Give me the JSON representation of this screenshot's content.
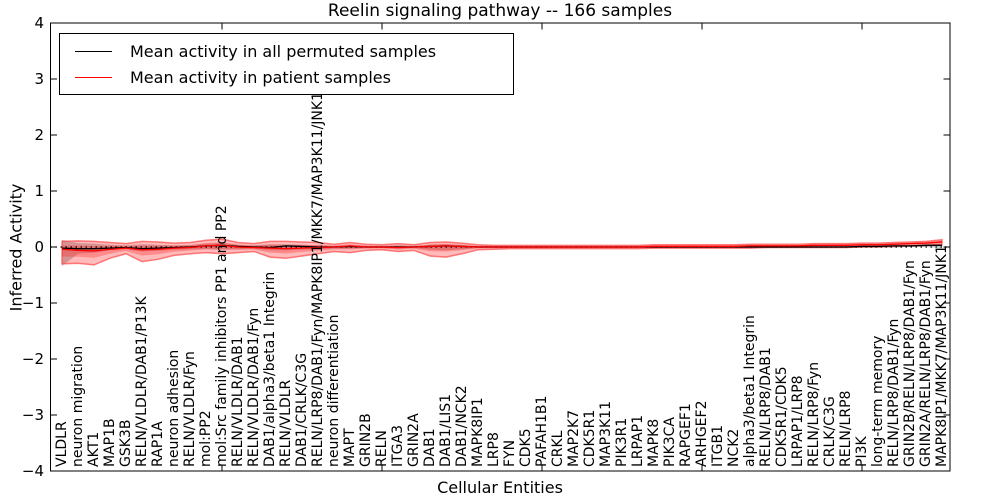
{
  "title": "Reelin signaling pathway -- 166 samples",
  "legend": {
    "items": [
      {
        "label": "Mean activity in all permuted samples",
        "color": "#000000"
      },
      {
        "label": "Mean activity in patient samples",
        "color": "#ff0000"
      }
    ]
  },
  "axes": {
    "ylabel": "Inferred Activity",
    "xlabel": "Cellular Entities",
    "ytick_labels": [
      "4",
      "3",
      "2",
      "1",
      "0",
      "−1",
      "−2",
      "−3",
      "−4"
    ]
  },
  "colors": {
    "permuted_line": "#000000",
    "patient_line": "#ff0000",
    "permuted_band": "rgba(128,128,128,0.45)",
    "patient_band_fill": "rgba(255,30,30,0.30)",
    "patient_band_edge": "rgba(255,60,60,0.65)",
    "frame": "#000000"
  },
  "chart_data": {
    "type": "line",
    "title": "Reelin signaling pathway -- 166 samples",
    "xlabel": "Cellular Entities",
    "ylabel": "Inferred Activity",
    "ylim": [
      -4,
      4
    ],
    "yticks": [
      4,
      3,
      2,
      1,
      0,
      -1,
      -2,
      -3,
      -4
    ],
    "xtick_indices": [
      10,
      20,
      30,
      40,
      50
    ],
    "grid": false,
    "legend_position": "upper left",
    "zero_line_style": "dotted",
    "categories": [
      "VLDLR",
      "neuron migration",
      "AKT1",
      "MAP1B",
      "GSK3B",
      "RELN/VLDLR/DAB1/P13K",
      "RAP1A",
      "neuron adhesion",
      "RELN/VLDLR/Fyn",
      "mol:PP2",
      "mol:Src family inhibitors PP1 and PP2",
      "RELN/VLDLR/DAB1",
      "RELN/VLDLR/DAB1/Fyn",
      "DAB1/alpha3/beta1 Integrin",
      "RELN/VLDLR",
      "DAB1/CRLK/C3G",
      "RELN/LRP8/DAB1/Fyn/MAPK8IP1/MKK7/MAP3K11/JNK1",
      "neuron differentiation",
      "MAPT",
      "GRIN2B",
      "RELN",
      "ITGA3",
      "GRIN2A",
      "DAB1",
      "DAB1/LIS1",
      "DAB1/NCK2",
      "MAPK8IP1",
      "LRP8",
      "FYN",
      "CDK5",
      "PAFAH1B1",
      "CRKL",
      "MAP2K7",
      "CDK5R1",
      "MAP3K11",
      "PIK3R1",
      "LRPAP1",
      "MAPK8",
      "PIK3CA",
      "RAPGEF1",
      "ARHGEF2",
      "ITGB1",
      "NCK2",
      "alpha3/beta1 Integrin",
      "RELN/LRP8/DAB1",
      "CDK5R1/CDK5",
      "LRPAP1/LRP8",
      "RELN/LRP8/Fyn",
      "CRLK/C3G",
      "RELN/LRP8",
      "PI3K",
      "long-term memory",
      "RELN/LRP8/DAB1/Fyn",
      "GRIN2B/RELN/LRP8/DAB1/Fyn",
      "GRIN2A/RELN/LRP8/DAB1/Fyn",
      "MAPK8IP1/MKK7/MAP3K11/JNK1"
    ],
    "series": [
      {
        "name": "Mean activity in all permuted samples",
        "color": "#000000",
        "values": [
          -0.02,
          -0.03,
          -0.03,
          -0.02,
          -0.01,
          -0.03,
          -0.02,
          -0.01,
          0,
          0.02,
          0.03,
          0.01,
          0,
          -0.01,
          0.02,
          0.01,
          0,
          0,
          0.01,
          0,
          0,
          0,
          0,
          0.01,
          0.02,
          0.01,
          0,
          0,
          0,
          0,
          0,
          0,
          0,
          0,
          0,
          0,
          0,
          0,
          0,
          0,
          0,
          0,
          0,
          0,
          0,
          0,
          0,
          0,
          0,
          0,
          0.01,
          0.01,
          0.02,
          0.02,
          0.03,
          0.03
        ],
        "band_upper": [
          0.13,
          0.07,
          0.06,
          0.04,
          0.03,
          0.05,
          0.04,
          0.03,
          0.03,
          0.06,
          0.07,
          0.04,
          0.03,
          0.05,
          0.05,
          0.04,
          0.03,
          0.02,
          0.03,
          0.02,
          0.02,
          0.03,
          0.02,
          0.04,
          0.05,
          0.03,
          0.02,
          0.02,
          0.02,
          0.02,
          0.02,
          0.02,
          0.02,
          0.02,
          0.02,
          0.02,
          0.02,
          0.02,
          0.02,
          0.02,
          0.02,
          0.02,
          0.02,
          0.02,
          0.02,
          0.02,
          0.02,
          0.02,
          0.02,
          0.02,
          0.03,
          0.03,
          0.04,
          0.04,
          0.05,
          0.06
        ],
        "band_lower": [
          -0.34,
          -0.12,
          -0.1,
          -0.06,
          -0.04,
          -0.08,
          -0.07,
          -0.05,
          -0.04,
          -0.04,
          -0.05,
          -0.04,
          -0.03,
          -0.06,
          -0.06,
          -0.05,
          -0.04,
          -0.03,
          -0.03,
          -0.02,
          -0.02,
          -0.03,
          -0.02,
          -0.05,
          -0.06,
          -0.04,
          -0.02,
          -0.02,
          -0.02,
          -0.02,
          -0.02,
          -0.02,
          -0.02,
          -0.02,
          -0.02,
          -0.02,
          -0.02,
          -0.02,
          -0.02,
          -0.02,
          -0.02,
          -0.02,
          -0.02,
          -0.02,
          -0.02,
          -0.02,
          -0.02,
          -0.02,
          -0.02,
          -0.02,
          -0.01,
          -0.01,
          -0.01,
          0,
          0,
          -0.02
        ]
      },
      {
        "name": "Mean activity in patient samples",
        "color": "#ff0000",
        "values": [
          -0.04,
          -0.06,
          -0.07,
          -0.04,
          -0.02,
          -0.05,
          -0.04,
          -0.02,
          -0.01,
          0.02,
          0.03,
          0,
          -0.01,
          -0.02,
          -0.03,
          -0.02,
          -0.01,
          0,
          0.02,
          0,
          0,
          -0.01,
          0,
          0.01,
          0.02,
          0.01,
          0,
          0,
          0,
          0,
          0,
          0,
          0,
          0,
          0,
          0,
          0,
          0.01,
          0.01,
          0.01,
          0.01,
          0.01,
          0.01,
          0.02,
          0.02,
          0.02,
          0.02,
          0.03,
          0.03,
          0.03,
          0.04,
          0.04,
          0.05,
          0.06,
          0.07,
          0.09
        ],
        "band_upper": [
          0.1,
          0.11,
          0.1,
          0.08,
          0.06,
          0.1,
          0.09,
          0.07,
          0.08,
          0.12,
          0.14,
          0.08,
          0.06,
          0.1,
          0.1,
          0.09,
          0.08,
          0.05,
          0.08,
          0.05,
          0.04,
          0.06,
          0.04,
          0.08,
          0.09,
          0.07,
          0.04,
          0.03,
          0.03,
          0.03,
          0.03,
          0.03,
          0.03,
          0.03,
          0.03,
          0.03,
          0.03,
          0.04,
          0.04,
          0.04,
          0.04,
          0.04,
          0.04,
          0.05,
          0.05,
          0.05,
          0.05,
          0.06,
          0.06,
          0.06,
          0.07,
          0.07,
          0.08,
          0.09,
          0.1,
          0.13
        ],
        "band_lower": [
          -0.3,
          -0.29,
          -0.32,
          -0.2,
          -0.12,
          -0.26,
          -0.22,
          -0.15,
          -0.12,
          -0.1,
          -0.12,
          -0.1,
          -0.08,
          -0.18,
          -0.2,
          -0.16,
          -0.12,
          -0.08,
          -0.1,
          -0.06,
          -0.05,
          -0.08,
          -0.06,
          -0.16,
          -0.18,
          -0.12,
          -0.05,
          -0.04,
          -0.03,
          -0.03,
          -0.03,
          -0.03,
          -0.03,
          -0.03,
          -0.03,
          -0.03,
          -0.03,
          -0.02,
          -0.02,
          -0.02,
          -0.02,
          -0.02,
          -0.02,
          -0.02,
          -0.01,
          -0.01,
          -0.01,
          -0.01,
          -0.01,
          -0.01,
          0,
          0,
          0.01,
          0.02,
          0.03,
          0.04
        ]
      }
    ]
  }
}
